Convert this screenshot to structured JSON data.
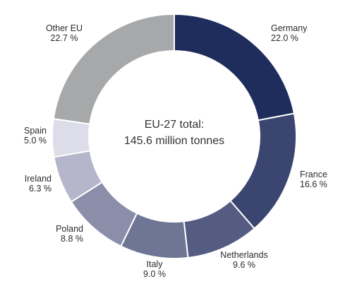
{
  "chart_data": {
    "type": "pie",
    "center_text": [
      "EU-27 total:",
      "145.6 million tonnes"
    ],
    "slices": [
      {
        "name": "Germany",
        "label": "22.0 %",
        "value": 22.0,
        "color": "#1f2d5c"
      },
      {
        "name": "France",
        "label": "16.6 %",
        "value": 16.6,
        "color": "#3a4570"
      },
      {
        "name": "Netherlands",
        "label": "9.6 %",
        "value": 9.6,
        "color": "#545c82"
      },
      {
        "name": "Italy",
        "label": "9.0 %",
        "value": 9.0,
        "color": "#6f7594"
      },
      {
        "name": "Poland",
        "label": "8.8 %",
        "value": 8.8,
        "color": "#8a8ea8"
      },
      {
        "name": "Ireland",
        "label": "6.3 %",
        "value": 6.3,
        "color": "#b5b6cb"
      },
      {
        "name": "Spain",
        "label": "5.0 %",
        "value": 5.0,
        "color": "#dcdde8"
      },
      {
        "name": "Other EU",
        "label": "22.7 %",
        "value": 22.7,
        "color": "#a7a8aa"
      }
    ]
  }
}
